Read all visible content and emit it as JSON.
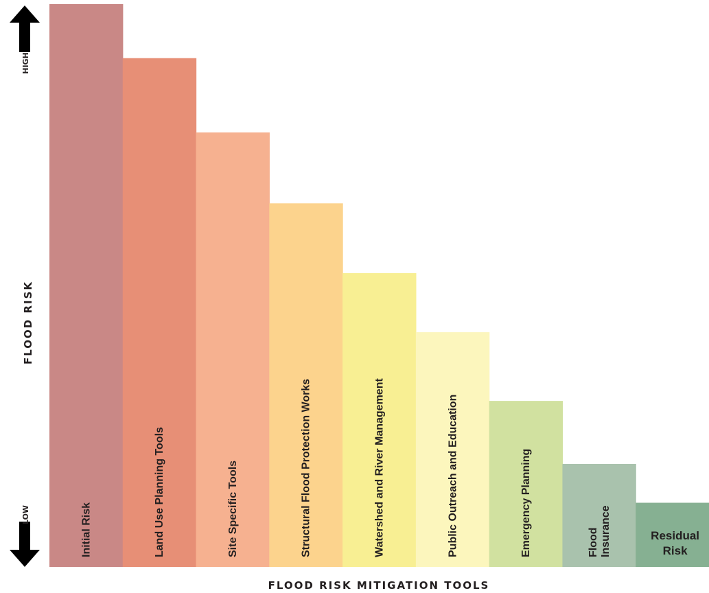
{
  "chart_data": {
    "type": "bar",
    "xlabel": "FLOOD RISK MITIGATION TOOLS",
    "ylabel": "FLOOD RISK",
    "y_high_label": "HIGH",
    "y_low_label": "LOW",
    "ylim": [
      0,
      100
    ],
    "grid": false,
    "legend": "none",
    "categories": [
      {
        "label": [
          "Initial Risk"
        ],
        "value": 100,
        "color": "#c98886"
      },
      {
        "label": [
          "Land Use Planning Tools"
        ],
        "value": 90.4,
        "color": "#e78f76"
      },
      {
        "label": [
          "Site Specific Tools"
        ],
        "value": 77.2,
        "color": "#f6b190"
      },
      {
        "label": [
          "Structural Flood Protection Works"
        ],
        "value": 64.6,
        "color": "#fcd38d"
      },
      {
        "label": [
          "Watershed and River Management"
        ],
        "value": 52.2,
        "color": "#f8ef93"
      },
      {
        "label": [
          "Public Outreach and Education"
        ],
        "value": 41.7,
        "color": "#fcf6bd"
      },
      {
        "label": [
          "Emergency Planning"
        ],
        "value": 29.5,
        "color": "#d1e1a0"
      },
      {
        "label": [
          "Flood",
          "Insurance"
        ],
        "value": 18.3,
        "color": "#a9c2ad"
      },
      {
        "label": [
          "Residual",
          "Risk"
        ],
        "value": 11.4,
        "color": "#86b092",
        "horizontal": true
      }
    ]
  }
}
